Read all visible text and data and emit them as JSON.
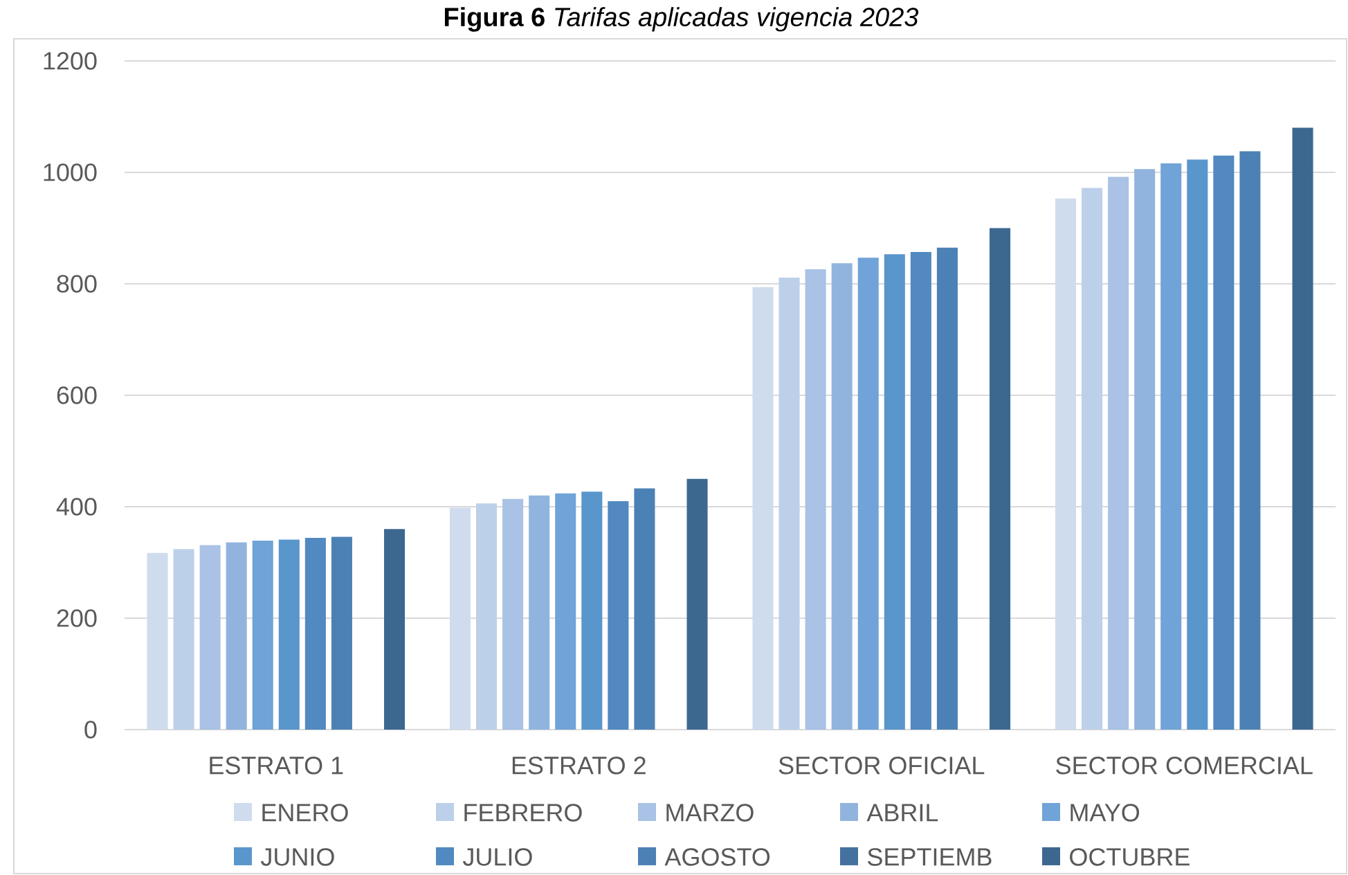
{
  "chart_data": {
    "type": "bar",
    "title": "**Figura 6** *Tarifas aplicadas vigencia 2023*",
    "categories": [
      "ESTRATO 1",
      "ESTRATO 2",
      "SECTOR OFICIAL",
      "SECTOR COMERCIAL"
    ],
    "series": [
      {
        "name": "ENERO",
        "color": "#cfdcee",
        "values": [
          317,
          398,
          794,
          953
        ]
      },
      {
        "name": "FEBRERO",
        "color": "#bdd0e9",
        "values": [
          324,
          406,
          811,
          972
        ]
      },
      {
        "name": "MARZO",
        "color": "#a9c2e5",
        "values": [
          331,
          414,
          826,
          992
        ]
      },
      {
        "name": "ABRIL",
        "color": "#91b4de",
        "values": [
          336,
          420,
          837,
          1006
        ]
      },
      {
        "name": "MAYO",
        "color": "#70a3d7",
        "values": [
          339,
          424,
          847,
          1016
        ]
      },
      {
        "name": "JUNIO",
        "color": "#5996cc",
        "values": [
          341,
          427,
          853,
          1023
        ]
      },
      {
        "name": "JULIO",
        "color": "#5189c0",
        "values": [
          344,
          410,
          857,
          1030
        ]
      },
      {
        "name": "AGOSTO",
        "color": "#4c81b5",
        "values": [
          346,
          433,
          865,
          1038
        ]
      },
      {
        "name": "SEPTIEMB",
        "color": "#44719f",
        "values": [
          null,
          null,
          null,
          null
        ]
      },
      {
        "name": "OCTUBRE",
        "color": "#3c6890",
        "values": [
          360,
          450,
          900,
          1080
        ]
      }
    ],
    "ylim": [
      0,
      1200
    ],
    "yticks": [
      0,
      200,
      400,
      600,
      800,
      1000,
      1200
    ],
    "grid": "y",
    "legend": "bottom"
  }
}
